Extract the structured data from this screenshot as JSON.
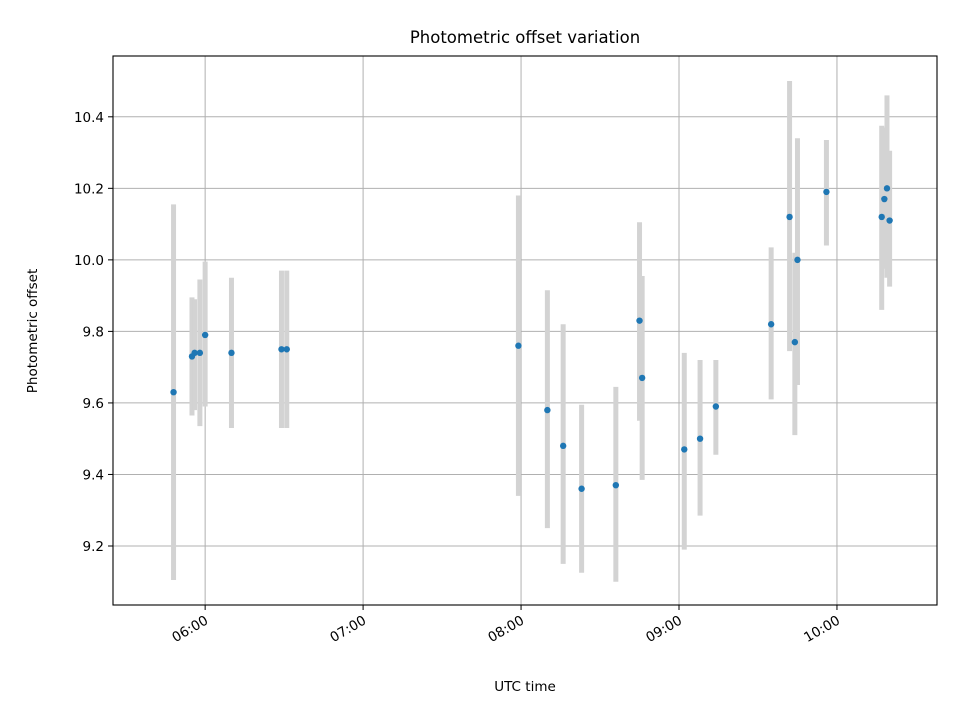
{
  "chart_data": {
    "type": "scatter",
    "title": "Photometric offset variation",
    "xlabel": "UTC time",
    "ylabel": "Photometric offset",
    "x_axis_type": "time",
    "xlim": [
      "05:25",
      "10:38"
    ],
    "ylim": [
      9.035,
      10.57
    ],
    "x_ticks": [
      "06:00",
      "07:00",
      "08:00",
      "09:00",
      "10:00"
    ],
    "y_ticks": [
      "9.2",
      "9.4",
      "9.6",
      "9.8",
      "10.0",
      "10.2",
      "10.4"
    ],
    "grid": true,
    "colors": {
      "points": "#1f77b4",
      "error_bars": "#d3d3d3"
    },
    "series": [
      {
        "points": [
          {
            "x": "05:48",
            "y": 9.63,
            "y_low": 9.105,
            "y_high": 10.155
          },
          {
            "x": "05:55",
            "y": 9.73,
            "y_low": 9.565,
            "y_high": 9.895
          },
          {
            "x": "05:56",
            "y": 9.74,
            "y_low": 9.58,
            "y_high": 9.89
          },
          {
            "x": "05:58",
            "y": 9.74,
            "y_low": 9.535,
            "y_high": 9.945
          },
          {
            "x": "06:00",
            "y": 9.79,
            "y_low": 9.59,
            "y_high": 9.995
          },
          {
            "x": "06:10",
            "y": 9.74,
            "y_low": 9.53,
            "y_high": 9.95
          },
          {
            "x": "06:29",
            "y": 9.75,
            "y_low": 9.53,
            "y_high": 9.97
          },
          {
            "x": "06:31",
            "y": 9.75,
            "y_low": 9.53,
            "y_high": 9.97
          },
          {
            "x": "07:59",
            "y": 9.76,
            "y_low": 9.34,
            "y_high": 10.18
          },
          {
            "x": "08:10",
            "y": 9.58,
            "y_low": 9.25,
            "y_high": 9.915
          },
          {
            "x": "08:16",
            "y": 9.48,
            "y_low": 9.15,
            "y_high": 9.82
          },
          {
            "x": "08:23",
            "y": 9.36,
            "y_low": 9.125,
            "y_high": 9.595
          },
          {
            "x": "08:36",
            "y": 9.37,
            "y_low": 9.1,
            "y_high": 9.645
          },
          {
            "x": "08:45",
            "y": 9.83,
            "y_low": 9.55,
            "y_high": 10.105
          },
          {
            "x": "08:46",
            "y": 9.67,
            "y_low": 9.385,
            "y_high": 9.955
          },
          {
            "x": "09:02",
            "y": 9.47,
            "y_low": 9.19,
            "y_high": 9.74
          },
          {
            "x": "09:08",
            "y": 9.5,
            "y_low": 9.285,
            "y_high": 9.72
          },
          {
            "x": "09:14",
            "y": 9.59,
            "y_low": 9.455,
            "y_high": 9.72
          },
          {
            "x": "09:35",
            "y": 9.82,
            "y_low": 9.61,
            "y_high": 10.035
          },
          {
            "x": "09:42",
            "y": 10.12,
            "y_low": 9.745,
            "y_high": 10.5
          },
          {
            "x": "09:44",
            "y": 9.77,
            "y_low": 9.51,
            "y_high": 10.02
          },
          {
            "x": "09:45",
            "y": 10.0,
            "y_low": 9.65,
            "y_high": 10.34
          },
          {
            "x": "09:56",
            "y": 10.19,
            "y_low": 10.04,
            "y_high": 10.335
          },
          {
            "x": "10:17",
            "y": 10.12,
            "y_low": 9.86,
            "y_high": 10.375
          },
          {
            "x": "10:18",
            "y": 10.17,
            "y_low": 9.975,
            "y_high": 10.37
          },
          {
            "x": "10:19",
            "y": 10.2,
            "y_low": 9.95,
            "y_high": 10.46
          },
          {
            "x": "10:20",
            "y": 10.11,
            "y_low": 9.925,
            "y_high": 10.305
          }
        ]
      }
    ]
  }
}
